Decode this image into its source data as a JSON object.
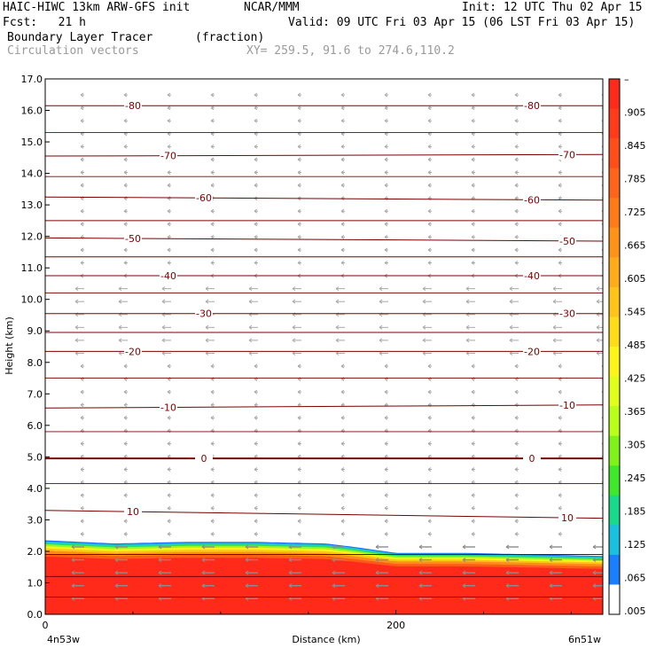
{
  "header": {
    "model": "HAIC-HIWC 13km ARW-GFS init",
    "org": "NCAR/MMM",
    "init": "Init: 12 UTC Thu 02 Apr 15",
    "fcst": "Fcst:   21 h",
    "valid": "Valid: 09 UTC Fri 03 Apr 15 (06 LST Fri 03 Apr 15)",
    "field": "Boundary Layer Tracer",
    "units": "(fraction)",
    "vectors": "Circulation vectors",
    "xy": "XY= 259.5, 91.6 to 274.6,110.2"
  },
  "chart_data": {
    "type": "heatmap",
    "title": "Boundary Layer Tracer",
    "xlabel": "Distance (km)",
    "ylabel": "Height (km)",
    "xlim": [
      0,
      318
    ],
    "ylim": [
      0,
      17
    ],
    "x_ticks": [
      "0",
      "200"
    ],
    "x_ticks_values": [
      0,
      200
    ],
    "x_end_labels": [
      "4n53w",
      "6n51w"
    ],
    "y_ticks": [
      "0.0",
      "1.0",
      "2.0",
      "3.0",
      "4.0",
      "5.0",
      "6.0",
      "7.0",
      "8.0",
      "9.0",
      "10.0",
      "11.0",
      "12.0",
      "13.0",
      "14.0",
      "15.0",
      "16.0",
      "17.0"
    ],
    "colorbar": {
      "labels": [
        "–",
        ".905",
        ".845",
        ".785",
        ".725",
        ".665",
        ".605",
        ".545",
        ".485",
        ".425",
        ".365",
        ".305",
        ".245",
        ".185",
        ".125",
        ".065",
        ".005"
      ],
      "colors": [
        "#ff2a1a",
        "#ff3b1a",
        "#ff4e1a",
        "#ff641a",
        "#ff7b1a",
        "#ff931a",
        "#ffab1a",
        "#ffc31a",
        "#ffdc1a",
        "#fff41a",
        "#e0ff1a",
        "#b8ff1a",
        "#7ff21a",
        "#3fe82a",
        "#19d98a",
        "#19c0e0",
        "#1a7fff",
        "#ffffff"
      ]
    },
    "tracer_top_km": [
      [
        0,
        2.35
      ],
      [
        40,
        2.25
      ],
      [
        80,
        2.3
      ],
      [
        120,
        2.3
      ],
      [
        160,
        2.25
      ],
      [
        175,
        2.15
      ],
      [
        200,
        1.95
      ],
      [
        240,
        1.95
      ],
      [
        280,
        1.9
      ],
      [
        318,
        1.85
      ]
    ],
    "temperature_contours": [
      {
        "label": "-80",
        "km": [
          16.15,
          16.15
        ]
      },
      {
        "label": "-70",
        "km": [
          14.55,
          14.6
        ]
      },
      {
        "label": "-60",
        "km": [
          13.25,
          13.15
        ]
      },
      {
        "label": "-50",
        "km": [
          11.95,
          11.85
        ]
      },
      {
        "label": "-40",
        "km": [
          10.75,
          10.75
        ]
      },
      {
        "label": "-30",
        "km": [
          9.55,
          9.55
        ]
      },
      {
        "label": "-20",
        "km": [
          8.35,
          8.35
        ]
      },
      {
        "label": "-10",
        "km": [
          6.55,
          6.65
        ]
      },
      {
        "label": "0",
        "km": [
          4.95,
          4.95
        ]
      },
      {
        "label": "10",
        "km": [
          3.3,
          3.05
        ]
      }
    ],
    "grid": false
  }
}
